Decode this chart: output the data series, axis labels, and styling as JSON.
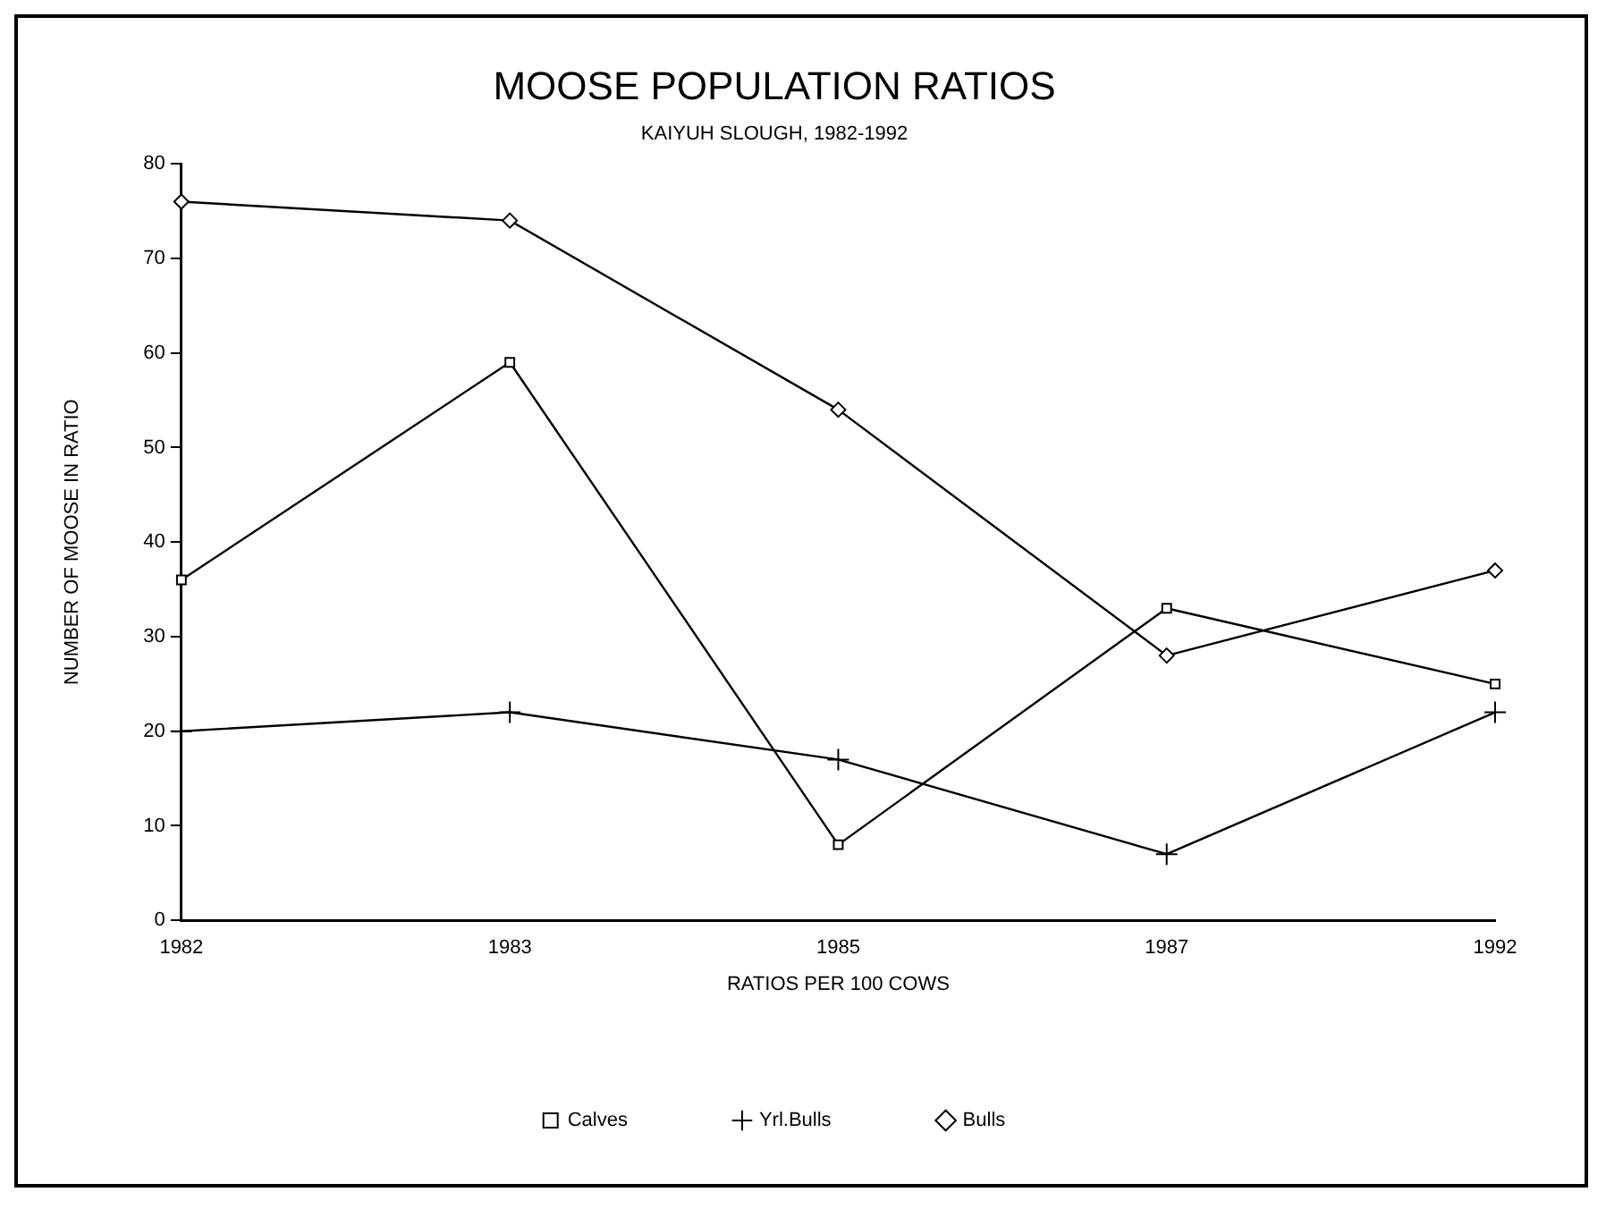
{
  "chart_data": {
    "type": "line",
    "title": "MOOSE POPULATION RATIOS",
    "subtitle": "KAIYUH SLOUGH, 1982-1992",
    "xlabel": "RATIOS PER 100 COWS",
    "ylabel": "NUMBER OF MOOSE IN RATIO",
    "categories": [
      "1982",
      "1983",
      "1985",
      "1987",
      "1992"
    ],
    "series": [
      {
        "name": "Calves",
        "color": "#000000",
        "marker": "square",
        "values": [
          36,
          59,
          8,
          33,
          25
        ]
      },
      {
        "name": "Yrl.Bulls",
        "color": "#000000",
        "marker": "cross",
        "values": [
          20,
          22,
          17,
          7,
          22
        ]
      },
      {
        "name": "Bulls",
        "color": "#000000",
        "marker": "diamond",
        "values": [
          76,
          74,
          54,
          28,
          37
        ]
      }
    ],
    "ylim": [
      0,
      80
    ],
    "yticks": [
      0,
      10,
      20,
      30,
      40,
      50,
      60,
      70,
      80
    ],
    "grid": false,
    "legend": "bottom",
    "line_style": "solid"
  }
}
